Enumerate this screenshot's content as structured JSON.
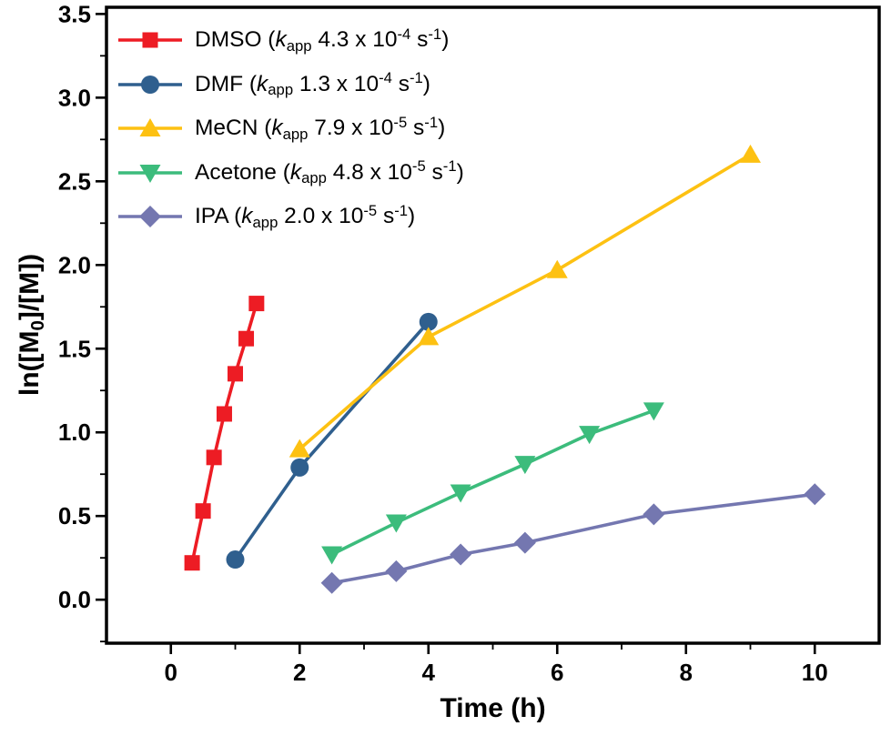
{
  "chart_data": {
    "type": "line",
    "title": "",
    "xlabel": "Time (h)",
    "ylabel": "ln([M0]/[M])",
    "ylabel_parts": [
      "ln([M",
      "0",
      "]/[M])"
    ],
    "xlim": [
      -1,
      11
    ],
    "ylim": [
      -0.26,
      3.54
    ],
    "x_ticks": [
      0,
      2,
      4,
      6,
      8,
      10
    ],
    "x_tick_labels": [
      "0",
      "2",
      "4",
      "6",
      "8",
      "10"
    ],
    "x_minor_ticks": [
      1,
      3,
      5,
      7,
      9
    ],
    "y_ticks": [
      0,
      0.5,
      1,
      1.5,
      2,
      2.5,
      3,
      3.5
    ],
    "y_tick_labels": [
      "0.0",
      "0.5",
      "1.0",
      "1.5",
      "2.0",
      "2.5",
      "3.0",
      "3.5"
    ],
    "y_minor_ticks": [
      -0.25,
      0.25,
      0.75,
      1.25,
      1.75,
      2.25,
      2.75,
      3.25
    ],
    "grid": false,
    "legend_position": "top-left",
    "frame_color": "#000000",
    "series": [
      {
        "name": "DMSO",
        "kapp": "4.3 x 10^-4 s^-1",
        "marker": "square",
        "color": "#ed1c24",
        "legend_parts": [
          "DMSO (",
          "k",
          "app",
          " 4.3 x 10",
          "-4",
          " s",
          "-1",
          ")"
        ],
        "points": [
          [
            0.33,
            0.22
          ],
          [
            0.5,
            0.53
          ],
          [
            0.67,
            0.85
          ],
          [
            0.83,
            1.11
          ],
          [
            1.0,
            1.35
          ],
          [
            1.17,
            1.56
          ],
          [
            1.33,
            1.77
          ]
        ]
      },
      {
        "name": "DMF",
        "kapp": "1.3 x 10^-4 s^-1",
        "marker": "circle",
        "color": "#2f5f8e",
        "legend_parts": [
          "DMF (",
          "k",
          "app",
          " 1.3 x 10",
          "-4",
          " s",
          "-1",
          ")"
        ],
        "points": [
          [
            1,
            0.24
          ],
          [
            2,
            0.79
          ],
          [
            4,
            1.66
          ]
        ]
      },
      {
        "name": "MeCN",
        "kapp": "7.9 x 10^-5 s^-1",
        "marker": "triangle-up",
        "color": "#fdc112",
        "legend_parts": [
          "MeCN (",
          "k",
          "app",
          " 7.9 x 10",
          "-5",
          " s",
          "-1",
          ")"
        ],
        "points": [
          [
            2,
            0.9
          ],
          [
            4,
            1.57
          ],
          [
            6,
            1.97
          ],
          [
            9,
            2.66
          ]
        ]
      },
      {
        "name": "Acetone",
        "kapp": "4.8 x 10^-5 s^-1",
        "marker": "triangle-down",
        "color": "#3cbc7c",
        "legend_parts": [
          "Acetone (",
          "k",
          "app",
          " 4.8 x 10",
          "-5",
          " s",
          "-1",
          ")"
        ],
        "points": [
          [
            2.5,
            0.27
          ],
          [
            3.5,
            0.46
          ],
          [
            4.5,
            0.64
          ],
          [
            5.5,
            0.81
          ],
          [
            6.5,
            0.99
          ],
          [
            7.5,
            1.13
          ]
        ]
      },
      {
        "name": "IPA",
        "kapp": "2.0 x 10^-5 s^-1",
        "marker": "diamond",
        "color": "#7477b0",
        "legend_parts": [
          "IPA (",
          "k",
          "app",
          " 2.0 x 10",
          "-5",
          " s",
          "-1",
          ")"
        ],
        "points": [
          [
            2.5,
            0.1
          ],
          [
            3.5,
            0.17
          ],
          [
            4.5,
            0.27
          ],
          [
            5.5,
            0.34
          ],
          [
            7.5,
            0.51
          ],
          [
            10,
            0.63
          ]
        ]
      }
    ]
  }
}
